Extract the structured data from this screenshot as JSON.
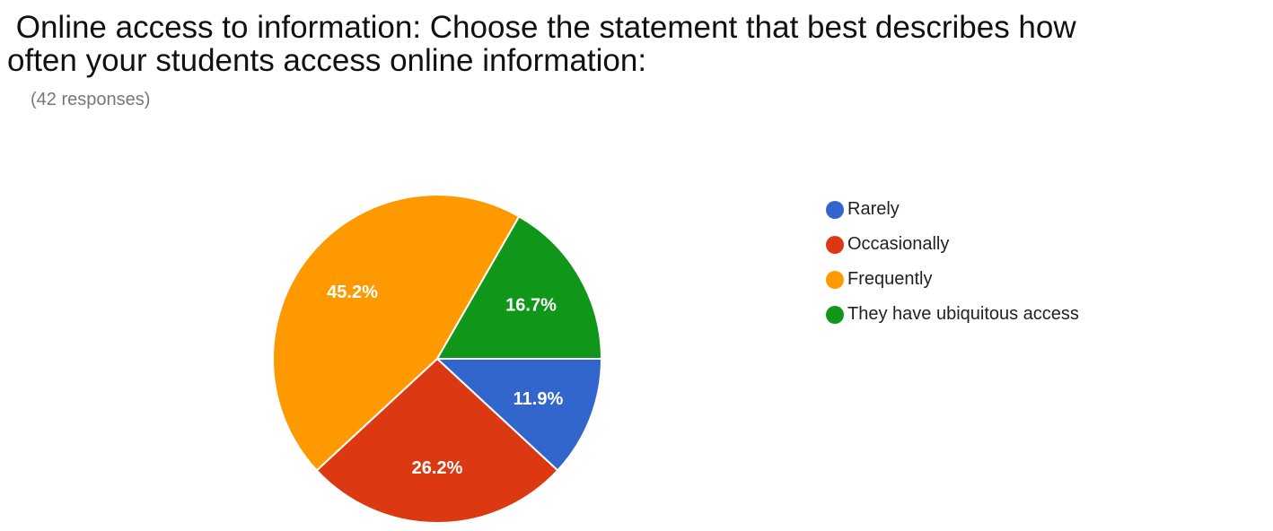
{
  "title": " Online access to information: Choose the statement that best describes how\noften your students access online information:",
  "responses": "(42 responses)",
  "chart_data": {
    "type": "pie",
    "title": " Online access to information: Choose the statement that best describes how often your students access online information:",
    "subtitle": "(42 responses)",
    "categories": [
      "Rarely",
      "Occasionally",
      "Frequently",
      "They have ubiquitous access"
    ],
    "values": [
      11.9,
      26.2,
      45.2,
      16.7
    ],
    "labels": [
      "11.9%",
      "26.2%",
      "45.2%",
      "16.7%"
    ],
    "colors": [
      "#3366cc",
      "#dc3912",
      "#ff9900",
      "#109618"
    ],
    "start_angle": "east, clockwise",
    "legend_position": "right"
  },
  "legend": [
    {
      "label": "Rarely",
      "color": "#3366cc"
    },
    {
      "label": "Occasionally",
      "color": "#dc3912"
    },
    {
      "label": "Frequently",
      "color": "#ff9900"
    },
    {
      "label": "They have ubiquitous access",
      "color": "#109618"
    }
  ]
}
